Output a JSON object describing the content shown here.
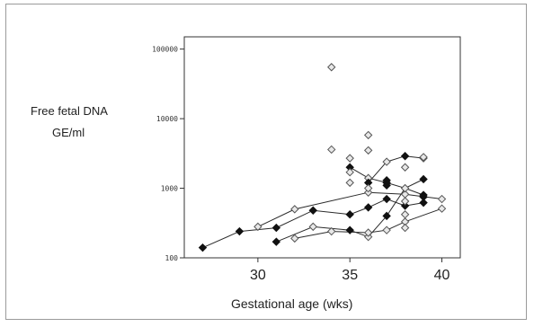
{
  "chart_data": {
    "type": "scatter",
    "xlabel": "Gestational age (wks)",
    "ylabel_lines": [
      "Free fetal DNA",
      "GE/ml"
    ],
    "x_ticks": [
      "30",
      "35",
      "40"
    ],
    "y_ticks": [
      "100",
      "1000",
      "10000",
      "100000"
    ],
    "xlim": [
      26,
      41
    ],
    "ylim": [
      100,
      150000
    ],
    "y_scale": "log",
    "grid": false,
    "legend": "none",
    "colors": {
      "solid": "#111111",
      "open_fill": "#e8e8e8",
      "open_stroke": "#555555",
      "line": "#2a2a2a"
    },
    "series": [
      {
        "points": [
          [
            27,
            140
          ],
          [
            29,
            240
          ],
          [
            31,
            270
          ],
          [
            33,
            480
          ],
          [
            35,
            420
          ],
          [
            36,
            530
          ],
          [
            37,
            700
          ],
          [
            38,
            560
          ],
          [
            39,
            620
          ]
        ],
        "marker": "solid"
      },
      {
        "points": [
          [
            30,
            280
          ],
          [
            32,
            500
          ],
          [
            36,
            870
          ],
          [
            38,
            820
          ],
          [
            40,
            700
          ]
        ],
        "marker": "open"
      },
      {
        "points": [
          [
            31,
            170
          ],
          [
            33,
            280
          ],
          [
            35,
            250
          ],
          [
            36,
            200
          ],
          [
            37,
            400
          ],
          [
            38,
            1000
          ],
          [
            39,
            800
          ]
        ],
        "marker": "mixed"
      },
      {
        "points": [
          [
            32,
            190
          ],
          [
            34,
            240
          ],
          [
            36,
            230
          ],
          [
            37,
            250
          ],
          [
            38,
            330
          ],
          [
            40,
            510
          ]
        ],
        "marker": "open"
      },
      {
        "points": [
          [
            35,
            2000
          ],
          [
            36,
            1400
          ],
          [
            37,
            1200
          ],
          [
            38,
            1000
          ],
          [
            39,
            1350
          ]
        ],
        "marker": "mixed"
      },
      {
        "points": [
          [
            36,
            1200
          ],
          [
            37,
            2400
          ],
          [
            38,
            2900
          ],
          [
            39,
            2700
          ]
        ],
        "marker": "mixed"
      }
    ],
    "scatter_points": [
      [
        34,
        55000,
        "open"
      ],
      [
        34,
        3600,
        "open"
      ],
      [
        35,
        2700,
        "open"
      ],
      [
        35,
        1700,
        "open"
      ],
      [
        35,
        1200,
        "open"
      ],
      [
        36,
        5800,
        "open"
      ],
      [
        36,
        3500,
        "open"
      ],
      [
        36,
        1000,
        "open"
      ],
      [
        37,
        1300,
        "solid"
      ],
      [
        37,
        1100,
        "solid"
      ],
      [
        38,
        2000,
        "open"
      ],
      [
        38,
        650,
        "open"
      ],
      [
        38,
        420,
        "open"
      ],
      [
        38,
        270,
        "open"
      ],
      [
        39,
        2800,
        "open"
      ],
      [
        39,
        750,
        "solid"
      ]
    ]
  }
}
